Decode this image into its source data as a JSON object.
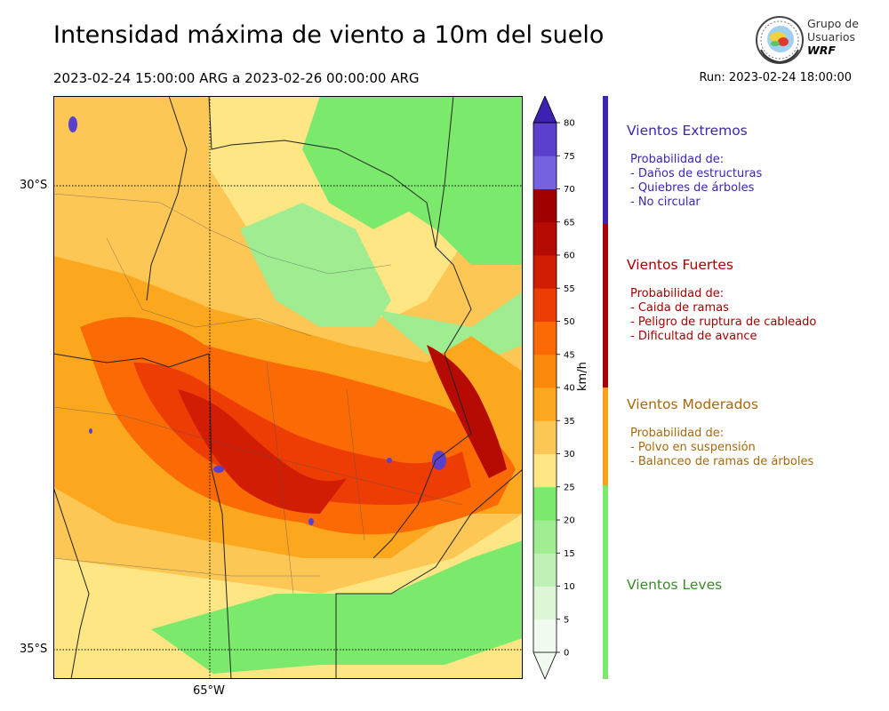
{
  "header": {
    "title": "Intensidad máxima de viento a 10m del suelo",
    "period": "2023-02-24 15:00:00 ARG  a  2023-02-26 00:00:00 ARG",
    "run": "Run: 2023-02-24 18:00:00"
  },
  "logo": {
    "line1": "Grupo de",
    "line2": "Usuarios",
    "line3": "WRF"
  },
  "map": {
    "lat_labels": [
      "30°S",
      "35°S"
    ],
    "lon_labels": [
      "65°W"
    ]
  },
  "colorbar": {
    "units": "km/h",
    "ticks": [
      "0",
      "5",
      "10",
      "15",
      "20",
      "25",
      "30",
      "35",
      "40",
      "45",
      "50",
      "55",
      "60",
      "65",
      "70",
      "75",
      "80"
    ],
    "colors": [
      "#f1fbef",
      "#ddf6d6",
      "#bff0b5",
      "#9fec91",
      "#7bea6c",
      "#fde683",
      "#fdc756",
      "#fca81f",
      "#fb8a0b",
      "#fb6a05",
      "#ed3c04",
      "#d11d04",
      "#b50b03",
      "#a00000",
      "#7562de",
      "#5a40cc",
      "#3d21b0"
    ]
  },
  "legend": {
    "categories": [
      {
        "title": "Vientos Extremos",
        "color": "#3b27b0",
        "lines": [
          "Probabilidad de:",
          "- Daños de estructuras",
          "- Quiebres de árboles",
          "- No circular"
        ]
      },
      {
        "title": "Vientos Fuertes",
        "color": "#a60000",
        "lines": [
          "Probabilidad de:",
          "- Caida de ramas",
          "- Peligro de ruptura de cableado",
          "- Dificultad de avance"
        ]
      },
      {
        "title": "Vientos Moderados",
        "color": "#a7690b",
        "lines": [
          "Probabilidad de:",
          "- Polvo en suspensión",
          "- Balanceo de ramas de árboles"
        ]
      },
      {
        "title": "Vientos Leves",
        "color": "#3a8a2c",
        "lines": []
      }
    ],
    "bar_colors": [
      "#3b27b0",
      "#a60000",
      "#fca01c",
      "#7bea6c"
    ]
  }
}
